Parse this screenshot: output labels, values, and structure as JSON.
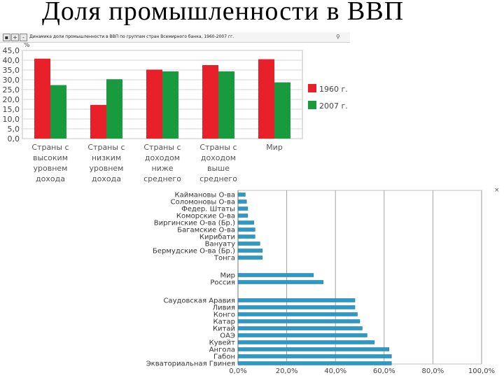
{
  "slide": {
    "title": "Доля промышленности в ВВП"
  },
  "toolbar": {
    "title": "Динамика доли промышленности в ВВП по группам стран Всемирного банка, 1960-2007 гг.",
    "plus": "+",
    "minus": "-",
    "search": "⚲",
    "close": "×"
  },
  "chart_data": [
    {
      "type": "bar",
      "title": "",
      "ylabel": "%",
      "ylim": [
        0,
        45
      ],
      "yticks": [
        "0,0",
        "5,0",
        "10,0",
        "15,0",
        "20,0",
        "25,0",
        "30,0",
        "35,0",
        "40,0",
        "45,0"
      ],
      "grid": true,
      "legend_position": "right",
      "categories": [
        [
          "Страны с",
          "высоким",
          "уровнем",
          "дохода"
        ],
        [
          "Страны с",
          "низким",
          "уровнем",
          "дохода"
        ],
        [
          "Страны с",
          "доходом",
          "ниже",
          "среднего"
        ],
        [
          "Страны с",
          "доходом",
          "выше",
          "среднего"
        ],
        [
          "Мир"
        ]
      ],
      "series": [
        {
          "name": "1960 г.",
          "color": "#e8202a",
          "values": [
            40.8,
            17.2,
            35.2,
            37.5,
            40.5
          ]
        },
        {
          "name": "2007 г.",
          "color": "#1a9a3e",
          "values": [
            27.3,
            30.3,
            34.3,
            34.3,
            28.7
          ]
        }
      ]
    },
    {
      "type": "bar",
      "orientation": "horizontal",
      "title": "",
      "xlim": [
        0,
        100
      ],
      "xticks": [
        "0,0%",
        "20,0%",
        "40,0%",
        "60,0%",
        "80,0%",
        "100,0%"
      ],
      "grid": true,
      "color": "#2a9bc8",
      "categories": [
        "Каймановы О-ва",
        "Соломоновы О-ва",
        "Федер. Штаты",
        "Коморские О-ва",
        "Виргинские О-ва (Бр.)",
        "Багамские О-ва",
        "Кирибати",
        "Вануату",
        "Бермудские О-ва (Бр.)",
        "Тонга",
        "Мир",
        "Россия",
        "Саудовская Аравия",
        "Ливия",
        "Конго",
        "Катар",
        "Китай",
        "ОАЭ",
        "Кувейт",
        "Ангола",
        "Габон",
        "Экваториальная Гвинея"
      ],
      "values": [
        3,
        3.5,
        4,
        4,
        6.5,
        7,
        7,
        9,
        10,
        10,
        31,
        35,
        48,
        48,
        49,
        50,
        51,
        53,
        56,
        62,
        63,
        63
      ]
    }
  ]
}
